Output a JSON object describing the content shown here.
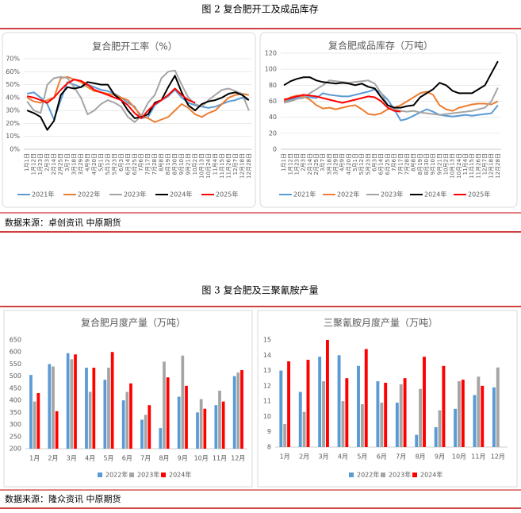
{
  "captions": [
    "图 2  复合肥开工及成品库存",
    "图 3  复合肥及三聚氰胺产量"
  ],
  "sources": [
    "数据来源：卓创资讯  中原期货",
    "数据来源：隆众资讯  中原期货"
  ],
  "chart_data": [
    {
      "type": "line",
      "title": "复合肥开工率（%）",
      "categories": [
        "1月1日",
        "1月12日",
        "1月23日",
        "2月3日",
        "2月14日",
        "2月25日",
        "3月7日",
        "3月18日",
        "3月29日",
        "4月9日",
        "4月20日",
        "5月1日",
        "5月12日",
        "5月23日",
        "6月3日",
        "6月14日",
        "6月25日",
        "7月6日",
        "7月17日",
        "7月28日",
        "8月8日",
        "8月19日",
        "8月30日",
        "9月10日",
        "9月21日",
        "10月2日",
        "10月13日",
        "10月24日",
        "11月4日",
        "11月15日",
        "11月26日",
        "12月7日",
        "12月18日",
        "12月28日"
      ],
      "ylim": [
        0,
        70
      ],
      "yticks": [
        {
          "value": 0,
          "label": "0%"
        },
        {
          "value": 10,
          "label": "10%"
        },
        {
          "value": 20,
          "label": "20%"
        },
        {
          "value": 30,
          "label": "30%"
        },
        {
          "value": 40,
          "label": "40%"
        },
        {
          "value": 50,
          "label": "50%"
        },
        {
          "value": 60,
          "label": "60%"
        },
        {
          "value": 70,
          "label": "70%"
        }
      ],
      "grid": true,
      "series": [
        {
          "name": "2021年",
          "color": "#5b9bd5",
          "values": [
            43,
            44,
            40,
            35,
            23,
            38,
            52,
            50,
            48,
            50,
            48,
            46,
            45,
            43,
            40,
            36,
            33,
            24,
            25,
            34,
            38,
            41,
            46,
            40,
            36,
            34,
            33,
            32,
            33,
            35,
            37,
            38,
            40,
            38
          ]
        },
        {
          "name": "2022年",
          "color": "#ed7d31",
          "values": [
            40,
            37,
            36,
            38,
            40,
            55,
            56,
            54,
            52,
            48,
            45,
            44,
            43,
            42,
            40,
            38,
            32,
            26,
            24,
            21,
            23,
            25,
            30,
            35,
            32,
            27,
            25,
            28,
            30,
            35,
            40,
            42,
            43,
            42
          ]
        },
        {
          "name": "2023年",
          "color": "#a5a5a5",
          "values": [
            37,
            30,
            28,
            50,
            55,
            56,
            55,
            48,
            40,
            27,
            30,
            35,
            38,
            36,
            33,
            25,
            21,
            26,
            36,
            42,
            55,
            60,
            61,
            50,
            40,
            35,
            33,
            38,
            42,
            46,
            47,
            45,
            43,
            30
          ]
        },
        {
          "name": "2024年",
          "color": "#000000",
          "values": [
            30,
            28,
            25,
            15,
            22,
            42,
            48,
            47,
            48,
            52,
            51,
            50,
            50,
            42,
            38,
            30,
            24,
            25,
            27,
            36,
            38,
            48,
            57,
            44,
            34,
            30,
            35,
            37,
            38,
            40,
            43,
            44,
            42,
            38
          ]
        },
        {
          "name": "2025年",
          "color": "#ff0000",
          "values": [
            41,
            40,
            38,
            36,
            40,
            46,
            51,
            54,
            53,
            50,
            46,
            44,
            42,
            40,
            38,
            34,
            28,
            24,
            30,
            35,
            38,
            42,
            47,
            42,
            38,
            36,
            null,
            null,
            null,
            null,
            null,
            null,
            null,
            null
          ]
        }
      ]
    },
    {
      "type": "line",
      "title": "复合肥成品库存（万吨）",
      "categories": [
        "1月1日",
        "1月12日",
        "1月23日",
        "2月3日",
        "2月14日",
        "2月25日",
        "3月7日",
        "3月18日",
        "3月29日",
        "4月9日",
        "4月20日",
        "5月1日",
        "5月12日",
        "5月23日",
        "6月3日",
        "6月14日",
        "6月25日",
        "7月6日",
        "7月17日",
        "7月28日",
        "8月8日",
        "8月19日",
        "8月30日",
        "9月10日",
        "9月21日",
        "10月2日",
        "10月13日",
        "10月24日",
        "11月4日",
        "11月15日",
        "11月26日",
        "12月7日",
        "12月18日",
        "12月28日"
      ],
      "ylim": [
        0,
        120
      ],
      "yticks": [
        0,
        20,
        40,
        60,
        80,
        100,
        120
      ],
      "grid": true,
      "series": [
        {
          "name": "2021年",
          "color": "#5b9bd5",
          "values": [
            60,
            62,
            65,
            66,
            65,
            64,
            70,
            68,
            67,
            66,
            66,
            68,
            70,
            72,
            75,
            70,
            62,
            50,
            36,
            38,
            42,
            46,
            50,
            47,
            43,
            42,
            41,
            42,
            43,
            42,
            43,
            44,
            45,
            55
          ]
        },
        {
          "name": "2022年",
          "color": "#ed7d31",
          "values": [
            60,
            65,
            67,
            66,
            62,
            55,
            51,
            52,
            50,
            52,
            54,
            55,
            50,
            44,
            43,
            45,
            50,
            52,
            55,
            60,
            65,
            70,
            72,
            68,
            55,
            50,
            48,
            52,
            54,
            56,
            57,
            57,
            56,
            60
          ]
        },
        {
          "name": "2023年",
          "color": "#a5a5a5",
          "values": [
            58,
            60,
            63,
            64,
            70,
            75,
            80,
            86,
            85,
            84,
            83,
            84,
            85,
            86,
            82,
            70,
            55,
            50,
            48,
            47,
            48,
            46,
            45,
            44,
            43,
            44,
            45,
            46,
            47,
            48,
            50,
            52,
            60,
            77
          ]
        },
        {
          "name": "2024年",
          "color": "#000000",
          "values": [
            80,
            85,
            88,
            90,
            90,
            86,
            84,
            83,
            82,
            83,
            82,
            80,
            82,
            78,
            76,
            65,
            55,
            52,
            52,
            54,
            55,
            65,
            70,
            75,
            83,
            80,
            73,
            70,
            70,
            70,
            75,
            80,
            95,
            110
          ]
        },
        {
          "name": "2025年",
          "color": "#ff0000",
          "values": [
            62,
            64,
            66,
            68,
            67,
            66,
            64,
            62,
            60,
            58,
            60,
            62,
            64,
            66,
            65,
            60,
            52,
            48,
            47,
            null,
            null,
            null,
            null,
            null,
            null,
            null,
            null,
            null,
            null,
            null,
            null,
            null,
            null,
            null
          ]
        }
      ]
    },
    {
      "type": "bar",
      "title": "复合肥月度产量（万吨）",
      "categories": [
        "1月",
        "2月",
        "3月",
        "4月",
        "5月",
        "6月",
        "7月",
        "8月",
        "9月",
        "10月",
        "11月",
        "12月"
      ],
      "ylim": [
        200,
        650
      ],
      "yticks": [
        200,
        250,
        300,
        350,
        400,
        450,
        500,
        550,
        600,
        650
      ],
      "grid": false,
      "series": [
        {
          "name": "2022年",
          "color": "#5b9bd5",
          "values": [
            505,
            550,
            595,
            535,
            485,
            400,
            320,
            285,
            415,
            350,
            380,
            500
          ]
        },
        {
          "name": "2023年",
          "color": "#a5a5a5",
          "values": [
            395,
            540,
            570,
            435,
            535,
            435,
            340,
            560,
            585,
            405,
            440,
            515
          ]
        },
        {
          "name": "2024年",
          "color": "#ff0000",
          "values": [
            430,
            355,
            590,
            535,
            600,
            470,
            380,
            495,
            460,
            365,
            395,
            525
          ]
        }
      ]
    },
    {
      "type": "bar",
      "title": "三聚氰胺月度产量（万吨）",
      "categories": [
        "1月",
        "2月",
        "3月",
        "4月",
        "5月",
        "6月",
        "7月",
        "8月",
        "9月",
        "10月",
        "11月",
        "12月"
      ],
      "ylim": [
        8,
        15
      ],
      "yticks": [
        8,
        9,
        10,
        11,
        12,
        13,
        14,
        15
      ],
      "grid": false,
      "series": [
        {
          "name": "2022年",
          "color": "#5b9bd5",
          "values": [
            13.0,
            11.6,
            13.9,
            14.0,
            13.3,
            12.3,
            10.9,
            8.8,
            9.3,
            10.5,
            11.4,
            11.9
          ]
        },
        {
          "name": "2023年",
          "color": "#a5a5a5",
          "values": [
            9.5,
            10.3,
            12.3,
            11.0,
            10.8,
            10.9,
            12.1,
            11.8,
            10.4,
            12.3,
            12.6,
            13.2
          ]
        },
        {
          "name": "2024年",
          "color": "#ff0000",
          "values": [
            13.6,
            13.7,
            15.0,
            12.5,
            14.4,
            12.2,
            12.5,
            13.9,
            13.3,
            12.4,
            12.0,
            null
          ]
        }
      ]
    }
  ]
}
